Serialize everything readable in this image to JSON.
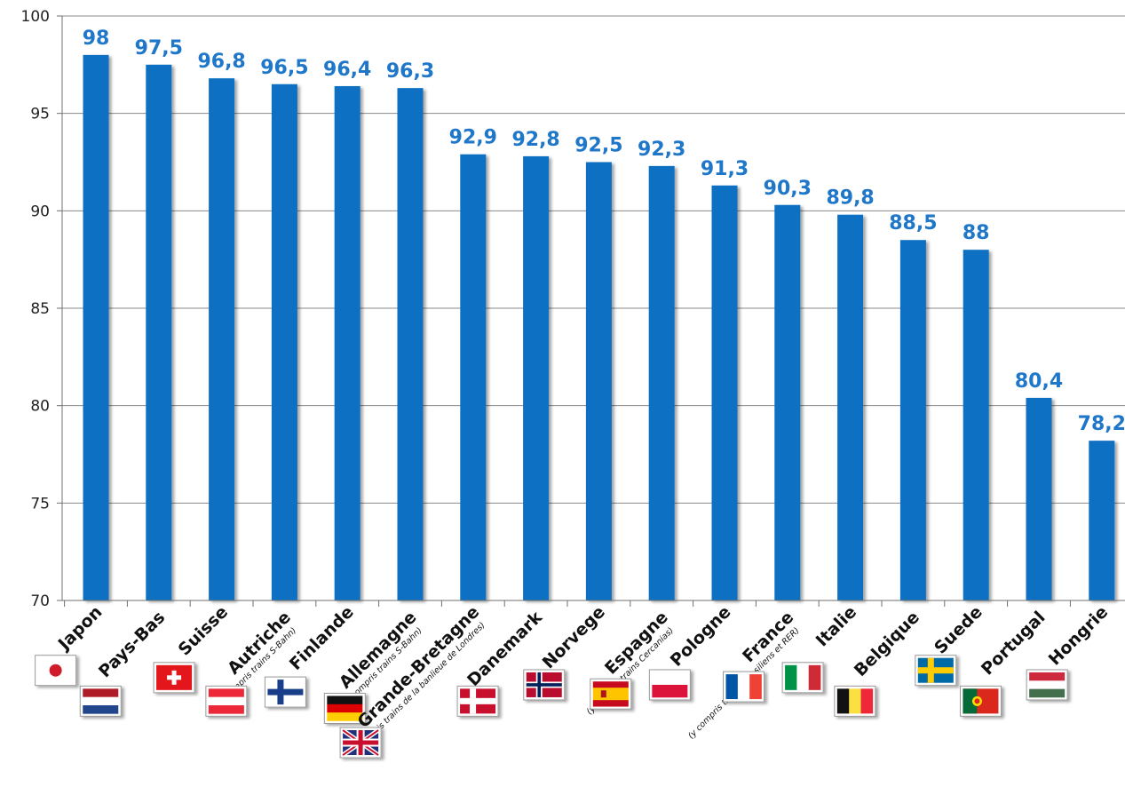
{
  "chart_data": {
    "type": "bar",
    "categories": [
      "Japon",
      "Pays-Bas",
      "Suisse",
      "Autriche",
      "Finlande",
      "Allemagne",
      "Grande-Bretagne",
      "Danemark",
      "Norvege",
      "Espagne",
      "Pologne",
      "France",
      "Italie",
      "Belgique",
      "Suede",
      "Portugal",
      "Hongrie"
    ],
    "values": [
      98,
      97.5,
      96.8,
      96.5,
      96.4,
      96.3,
      92.9,
      92.8,
      92.5,
      92.3,
      91.3,
      90.3,
      89.8,
      88.5,
      88,
      80.4,
      78.2
    ],
    "data_labels": [
      "98",
      "97,5",
      "96,8",
      "96,5",
      "96,4",
      "96,3",
      "92,9",
      "92,8",
      "92,5",
      "92,3",
      "91,3",
      "90,3",
      "89,8",
      "88,5",
      "88",
      "80,4",
      "78,2"
    ],
    "notes": [
      "",
      "",
      "",
      "(y compris trains S-Bahn)",
      "",
      "(y compris trains S-Bahn)",
      "(y compris trains de la banlieue de Londres)",
      "",
      "",
      "(y compris trains Cercanias)",
      "",
      "(y compris trains Transiliens et RER)",
      "",
      "",
      "",
      "",
      ""
    ],
    "flags": [
      "flag-japan-icon",
      "flag-netherlands-icon",
      "flag-switzerland-icon",
      "flag-austria-icon",
      "flag-finland-icon",
      "flag-germany-icon",
      "flag-uk-icon",
      "flag-denmark-icon",
      "flag-norway-icon",
      "flag-spain-icon",
      "flag-poland-icon",
      "flag-france-icon",
      "flag-italy-icon",
      "flag-belgium-icon",
      "flag-sweden-icon",
      "flag-portugal-icon",
      "flag-hungary-icon"
    ],
    "yticks": [
      "100",
      "95",
      "90",
      "85",
      "80",
      "75",
      "70"
    ],
    "ylim": [
      70,
      100
    ],
    "grid": true,
    "title": "",
    "xlabel": "",
    "ylabel": "",
    "colors": {
      "bar": "#0a6fc2",
      "label": "#1f77c9",
      "grid": "#8a8a8a"
    }
  }
}
